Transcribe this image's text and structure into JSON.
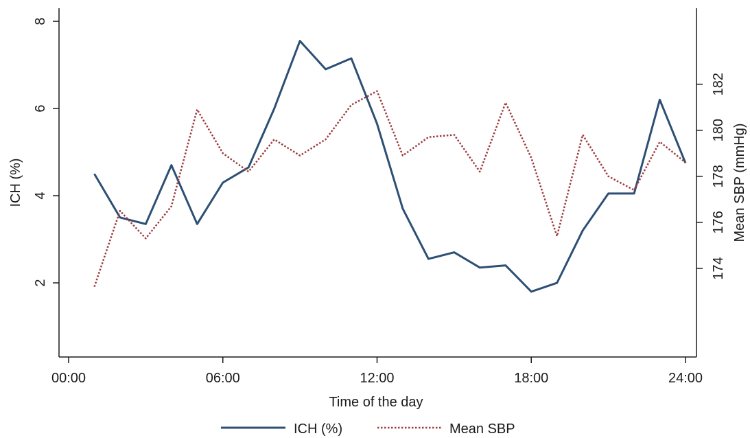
{
  "chart_data": {
    "type": "line",
    "title": "",
    "xlabel": "Time of the day",
    "ylabel": "ICH (%)",
    "y2label": "Mean SBP (mmHg)",
    "x_ticks": [
      "00:00",
      "06:00",
      "12:00",
      "18:00",
      "24:00"
    ],
    "x_range_hours": [
      0,
      24
    ],
    "y_ticks": [
      2,
      4,
      6,
      8
    ],
    "ylim": [
      0.3,
      8.3
    ],
    "y2_ticks": [
      174,
      176,
      178,
      180,
      182
    ],
    "y2lim": [
      170.15,
      185.3
    ],
    "grid": false,
    "legend": "bottom",
    "series": [
      {
        "name": "ICH (%)",
        "axis": "left",
        "style": "solid",
        "color": "#2c4f73",
        "x": [
          1,
          2,
          3,
          4,
          5,
          6,
          7,
          8,
          9,
          10,
          11,
          12,
          13,
          14,
          15,
          16,
          17,
          18,
          19,
          20,
          21,
          22,
          23,
          24
        ],
        "values": [
          4.5,
          3.5,
          3.35,
          4.7,
          3.35,
          4.3,
          4.65,
          6.0,
          7.55,
          6.9,
          7.15,
          5.65,
          3.7,
          2.55,
          2.7,
          2.35,
          2.4,
          1.8,
          2.0,
          3.2,
          4.05,
          4.05,
          6.2,
          4.75
        ]
      },
      {
        "name": "Mean SBP",
        "axis": "right",
        "style": "dotted",
        "color": "#9e3a3d",
        "x": [
          1,
          2,
          3,
          4,
          5,
          6,
          7,
          8,
          9,
          10,
          11,
          12,
          13,
          14,
          15,
          16,
          17,
          18,
          19,
          20,
          21,
          22,
          23,
          24
        ],
        "values": [
          173.2,
          176.5,
          175.3,
          176.7,
          180.9,
          179.0,
          178.2,
          179.6,
          178.9,
          179.6,
          181.1,
          181.7,
          178.9,
          179.7,
          179.8,
          178.2,
          181.2,
          178.8,
          175.4,
          179.8,
          178.0,
          177.4,
          179.5,
          178.6
        ]
      }
    ]
  }
}
